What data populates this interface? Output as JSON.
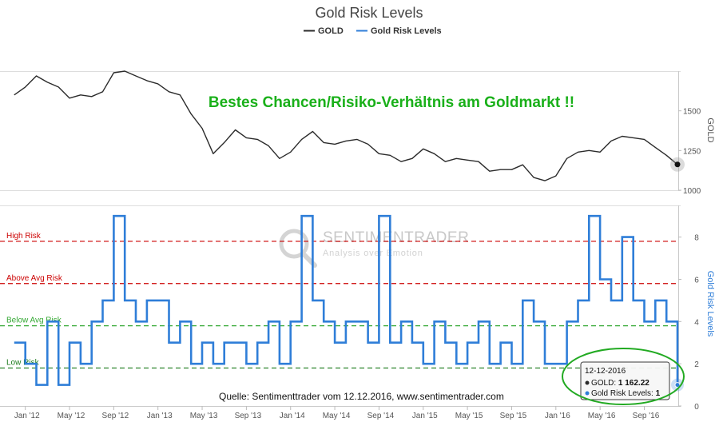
{
  "colors": {
    "gold_line": "#2b2b2b",
    "risk_line": "#2f7ed8",
    "high_risk": "#cc0000",
    "above_avg": "#cc0000",
    "below_avg": "#33a833",
    "low_risk": "#1a7a1a",
    "headline": "#1ab01a",
    "highlight_ellipse": "#22aa22"
  },
  "annotations": {
    "headline": "Bestes Chancen/Risiko-Verhältnis am Goldmarkt !!",
    "source": "Quelle: Sentimenttrader vom 12.12.2016, www.sentimentrader.com",
    "watermark_brand": "SENTIMENTRADER",
    "watermark_tagline": "Analysis over Emotion"
  },
  "tooltip": {
    "date": "12-12-2016",
    "gold_label": "GOLD:",
    "gold_value": "1 162.22",
    "risk_label": "Gold Risk Levels:",
    "risk_value": "1"
  },
  "chart_data": {
    "type": "line",
    "title": "Gold Risk Levels",
    "legend": [
      "GOLD",
      "Gold Risk Levels"
    ],
    "legend_position": "top-center",
    "x_ticks": [
      "Jan '12",
      "May '12",
      "Sep '12",
      "Jan '13",
      "May '13",
      "Sep '13",
      "Jan '14",
      "May '14",
      "Sep '14",
      "Jan '15",
      "May '15",
      "Sep '15",
      "Jan '16",
      "May '16",
      "Sep '16"
    ],
    "x_range": [
      "2011-11",
      "2016-12"
    ],
    "panels": [
      {
        "name": "GOLD",
        "ylabel": "GOLD",
        "ylim": [
          1000,
          1750
        ],
        "yticks": [
          1000,
          1250,
          1500
        ],
        "series": [
          {
            "name": "GOLD",
            "x": [
              "2011-12",
              "2012-01",
              "2012-02",
              "2012-03",
              "2012-04",
              "2012-05",
              "2012-06",
              "2012-07",
              "2012-08",
              "2012-09",
              "2012-10",
              "2012-11",
              "2012-12",
              "2013-01",
              "2013-02",
              "2013-03",
              "2013-04",
              "2013-05",
              "2013-06",
              "2013-07",
              "2013-08",
              "2013-09",
              "2013-10",
              "2013-11",
              "2013-12",
              "2014-01",
              "2014-02",
              "2014-03",
              "2014-04",
              "2014-05",
              "2014-06",
              "2014-07",
              "2014-08",
              "2014-09",
              "2014-10",
              "2014-11",
              "2014-12",
              "2015-01",
              "2015-02",
              "2015-03",
              "2015-04",
              "2015-05",
              "2015-06",
              "2015-07",
              "2015-08",
              "2015-09",
              "2015-10",
              "2015-11",
              "2015-12",
              "2016-01",
              "2016-02",
              "2016-03",
              "2016-04",
              "2016-05",
              "2016-06",
              "2016-07",
              "2016-08",
              "2016-09",
              "2016-10",
              "2016-11",
              "2016-12"
            ],
            "values": [
              1600,
              1650,
              1720,
              1680,
              1650,
              1580,
              1600,
              1590,
              1620,
              1740,
              1750,
              1720,
              1690,
              1670,
              1620,
              1600,
              1480,
              1390,
              1230,
              1300,
              1380,
              1330,
              1320,
              1280,
              1200,
              1240,
              1320,
              1370,
              1300,
              1290,
              1310,
              1320,
              1290,
              1230,
              1220,
              1180,
              1200,
              1260,
              1230,
              1180,
              1200,
              1190,
              1180,
              1120,
              1130,
              1130,
              1160,
              1080,
              1060,
              1090,
              1200,
              1240,
              1250,
              1240,
              1310,
              1340,
              1330,
              1320,
              1270,
              1220,
              1162.22
            ]
          }
        ]
      },
      {
        "name": "Gold Risk Levels",
        "ylabel": "Gold Risk Levels",
        "ylim": [
          0,
          9.5
        ],
        "yticks": [
          0,
          2,
          4,
          6,
          8
        ],
        "reference_lines": [
          {
            "label": "High Risk",
            "value": 7.8
          },
          {
            "label": "Above Avg Risk",
            "value": 5.8
          },
          {
            "label": "Below Avg Risk",
            "value": 3.8
          },
          {
            "label": "Low Risk",
            "value": 1.8
          }
        ],
        "series": [
          {
            "name": "Gold Risk Levels",
            "x": [
              "2011-12",
              "2012-01",
              "2012-02",
              "2012-03",
              "2012-04",
              "2012-05",
              "2012-06",
              "2012-07",
              "2012-08",
              "2012-09",
              "2012-10",
              "2012-11",
              "2012-12",
              "2013-01",
              "2013-02",
              "2013-03",
              "2013-04",
              "2013-05",
              "2013-06",
              "2013-07",
              "2013-08",
              "2013-09",
              "2013-10",
              "2013-11",
              "2013-12",
              "2014-01",
              "2014-02",
              "2014-03",
              "2014-04",
              "2014-05",
              "2014-06",
              "2014-07",
              "2014-08",
              "2014-09",
              "2014-10",
              "2014-11",
              "2014-12",
              "2015-01",
              "2015-02",
              "2015-03",
              "2015-04",
              "2015-05",
              "2015-06",
              "2015-07",
              "2015-08",
              "2015-09",
              "2015-10",
              "2015-11",
              "2015-12",
              "2016-01",
              "2016-02",
              "2016-03",
              "2016-04",
              "2016-05",
              "2016-06",
              "2016-07",
              "2016-08",
              "2016-09",
              "2016-10",
              "2016-11",
              "2016-12"
            ],
            "values": [
              3,
              2,
              1,
              4,
              1,
              3,
              2,
              4,
              5,
              9,
              5,
              4,
              5,
              5,
              3,
              4,
              2,
              3,
              2,
              3,
              3,
              2,
              3,
              4,
              2,
              4,
              9,
              5,
              4,
              3,
              4,
              4,
              3,
              9,
              3,
              4,
              3,
              2,
              4,
              3,
              2,
              3,
              4,
              2,
              3,
              2,
              5,
              4,
              2,
              2,
              4,
              5,
              9,
              6,
              5,
              8,
              5,
              4,
              5,
              4,
              1
            ]
          }
        ]
      }
    ]
  }
}
